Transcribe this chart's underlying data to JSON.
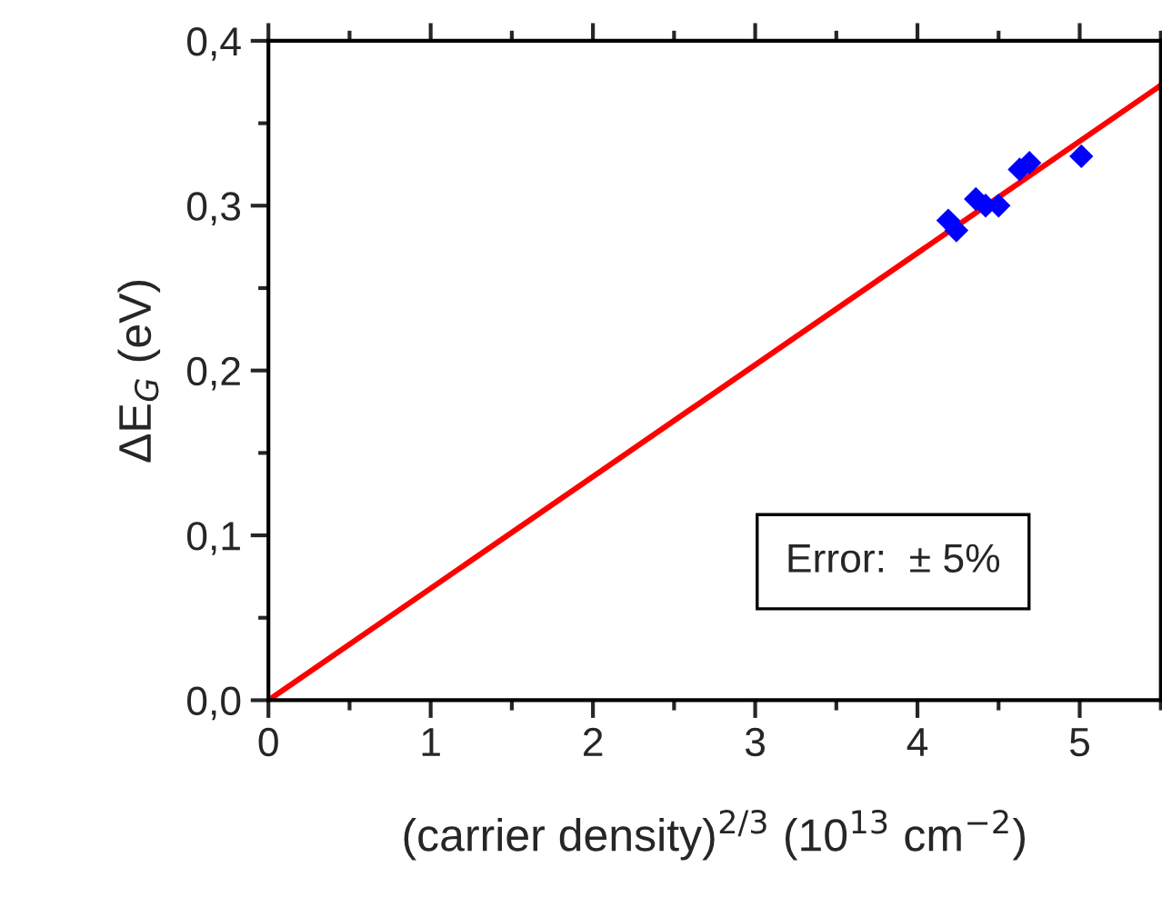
{
  "chart_data": {
    "type": "scatter",
    "xlabel": "(carrier density)$^{2/3}$ (10$^{13}$ cm$^{−2}$)",
    "ylabel": "ΔE$_{G}$ (eV)",
    "annotations": [
      "Error:  ± 5%"
    ],
    "series": [
      {
        "type": "line",
        "color": "#ff0000",
        "x": [
          0,
          5.5
        ],
        "values": [
          0,
          0.373
        ]
      },
      {
        "color": "#0000ff",
        "marker": "diamond",
        "x": [
          4.19,
          4.24,
          4.36,
          4.39,
          4.42,
          4.47,
          4.5,
          4.63,
          4.69,
          5.01
        ],
        "values": [
          0.291,
          0.285,
          0.304,
          null,
          0.3,
          null,
          0.3,
          0.322,
          0.326,
          0.33
        ]
      }
    ],
    "xlim": [
      0,
      5.5
    ],
    "xticks": [
      0,
      1,
      2,
      3,
      4,
      5
    ],
    "ylim": [
      0,
      0.4
    ],
    "yticks": [
      {
        "value": 0,
        "label": "0,0"
      },
      {
        "value": 0.1,
        "label": "0,1"
      },
      {
        "value": 0.2,
        "label": "0,2"
      },
      {
        "value": 0.3,
        "label": "0,3"
      },
      {
        "value": 0.4,
        "label": "0,4"
      }
    ],
    "grid": false,
    "legend": false
  }
}
